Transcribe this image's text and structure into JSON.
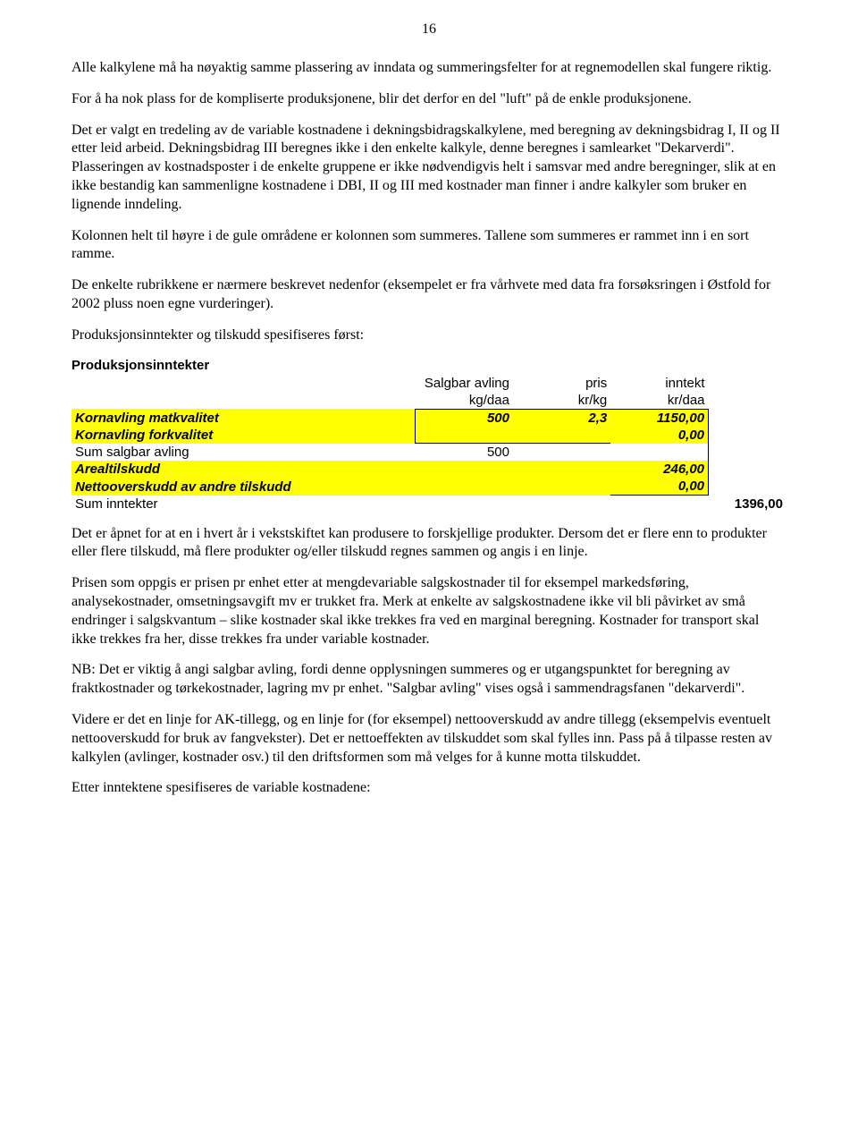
{
  "page_number": "16",
  "paragraphs": {
    "p1": "Alle kalkylene må ha nøyaktig samme plassering av inndata og summeringsfelter for at regnemodellen skal fungere riktig.",
    "p2": "For å ha nok plass for de kompliserte produksjonene, blir det derfor en del \"luft\" på de enkle produksjonene.",
    "p3": "Det er valgt en tredeling av de variable kostnadene i dekningsbidragskalkylene, med beregning av dekningsbidrag I, II og II etter leid arbeid. Dekningsbidrag III beregnes ikke i den enkelte kalkyle, denne beregnes i samlearket \"Dekarverdi\". Plasseringen av kostnadsposter i de enkelte gruppene er ikke nødvendigvis helt i samsvar med andre beregninger, slik at en ikke bestandig kan sammenligne kostnadene i DBI, II og III med kostnader man finner i andre kalkyler som bruker en lignende inndeling.",
    "p4": "Kolonnen helt til høyre i de gule områdene er kolonnen som summeres. Tallene som summeres er rammet inn i en sort ramme.",
    "p5": "De enkelte rubrikkene er nærmere beskrevet nedenfor (eksempelet er fra vårhvete med data fra forsøksringen i Østfold for 2002 pluss noen egne vurderinger).",
    "p6": "Produksjonsinntekter og tilskudd spesifiseres først:",
    "p7": "Det er åpnet for at en i hvert år i vekstskiftet kan produsere to forskjellige produkter. Dersom det er flere enn to produkter eller flere tilskudd, må flere produkter og/eller tilskudd regnes sammen og angis i en linje.",
    "p8": "Prisen som oppgis er prisen pr enhet etter at mengdevariable salgskostnader til for eksempel markedsføring, analysekostnader, omsetningsavgift mv er trukket fra. Merk at enkelte av salgskostnadene ikke vil bli påvirket av små endringer i salgskvantum – slike kostnader skal ikke trekkes fra ved en marginal beregning. Kostnader for transport skal ikke trekkes fra her, disse trekkes fra under variable kostnader.",
    "p9": "NB: Det er viktig å angi salgbar avling, fordi denne opplysningen summeres og er utgangspunktet for beregning av fraktkostnader og tørkekostnader, lagring mv pr enhet. \"Salgbar avling\" vises også i sammendragsfanen \"dekarverdi\".",
    "p10": "Videre er det en linje for AK-tillegg, og en linje for (for eksempel) nettooverskudd av andre tillegg (eksempelvis eventuelt nettooverskudd for bruk av fangvekster). Det er nettoeffekten av tilskuddet som skal fylles inn. Pass på å tilpasse resten av kalkylen (avlinger, kostnader osv.) til den driftsformen som må velges for å kunne motta tilskuddet.",
    "p11": "Etter inntektene spesifiseres de variable kostnadene:"
  },
  "table": {
    "heading": "Produksjonsinntekter",
    "header_row1": {
      "c1": "Salgbar avling",
      "c2": "pris",
      "c3": "inntekt"
    },
    "header_row2": {
      "c1": "kg/daa",
      "c2": "kr/kg",
      "c3": "kr/daa"
    },
    "rows": {
      "r1": {
        "label": "Kornavling matkvalitet",
        "c1": "500",
        "c2": "2,3",
        "c3": "1150,00"
      },
      "r2": {
        "label": "Kornavling forkvalitet",
        "c1": "",
        "c2": "",
        "c3": "0,00"
      },
      "r3": {
        "label": "Sum salgbar avling",
        "c1": "500",
        "c2": "",
        "c3": ""
      },
      "r4": {
        "label": "Arealtilskudd",
        "c1": "",
        "c2": "",
        "c3": "246,00"
      },
      "r5": {
        "label": "Nettooverskudd av andre tilskudd",
        "c1": "",
        "c2": "",
        "c3": "0,00"
      },
      "r6": {
        "label": "Sum inntekter",
        "c1": "",
        "c2": "",
        "c3": "",
        "total": "1396,00"
      }
    },
    "colors": {
      "highlight": "#ffff00",
      "border": "#000000",
      "background": "#ffffff"
    },
    "font": {
      "body_family": "Times New Roman",
      "table_family": "Arial",
      "body_size_pt": 12,
      "table_size_pt": 11
    }
  }
}
